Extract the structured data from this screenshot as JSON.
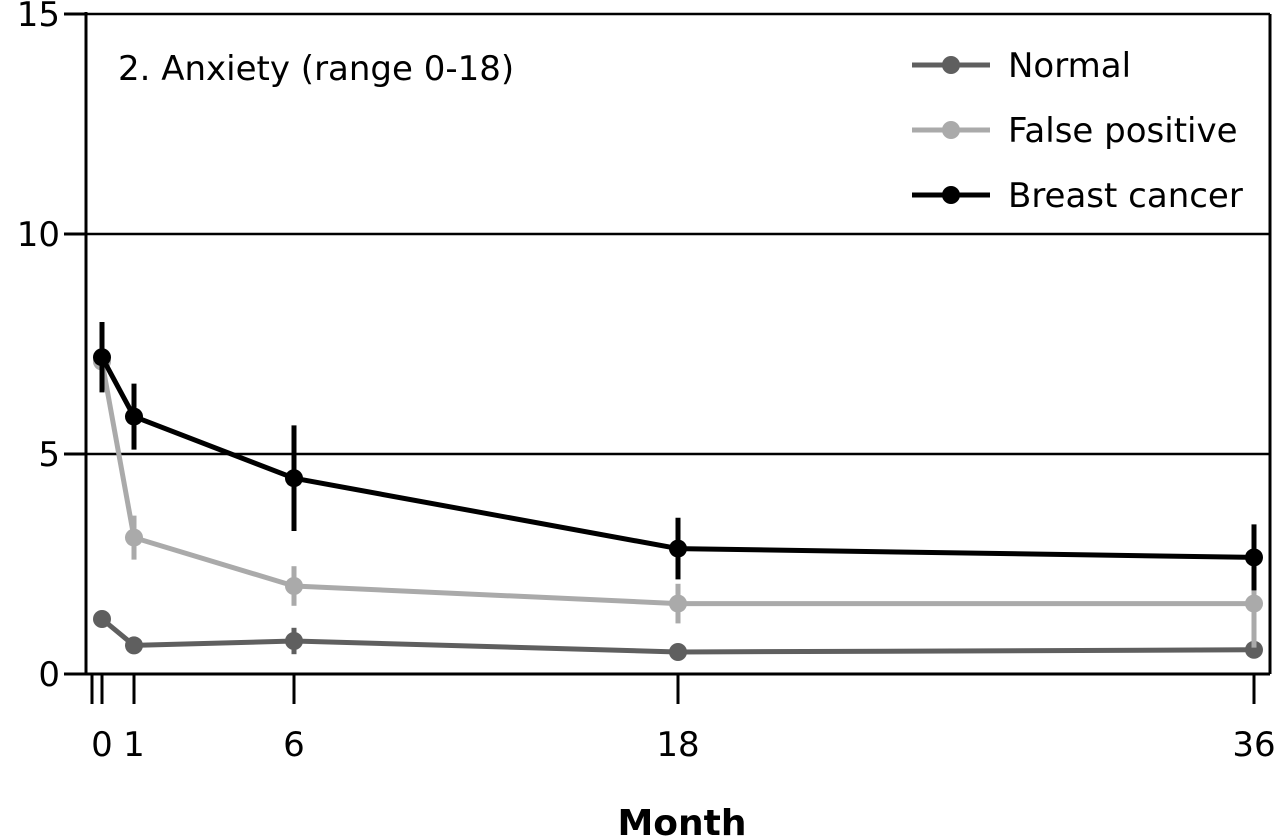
{
  "chart_data": {
    "type": "line",
    "title": "",
    "annotation": "2. Anxiety (range 0-18)",
    "xlabel": "Month",
    "ylabel": "",
    "xlim": [
      -0.5,
      36.5
    ],
    "ylim": [
      0,
      15
    ],
    "x_ticks": [
      0,
      1,
      6,
      18,
      36
    ],
    "y_ticks": [
      0,
      5,
      10,
      15
    ],
    "gridlines_y": true,
    "legend_position": "top-right",
    "series": [
      {
        "name": "Normal",
        "color": "#5f5f5f",
        "x": [
          0,
          1,
          6,
          18,
          36
        ],
        "y": [
          1.25,
          0.65,
          0.75,
          0.5,
          0.55
        ],
        "err": [
          0.1,
          0.1,
          0.3,
          0.1,
          0.15
        ]
      },
      {
        "name": "False positive",
        "color": "#aaaaaa",
        "x": [
          0,
          1,
          6,
          18,
          36
        ],
        "y": [
          7.1,
          3.1,
          2.0,
          1.6,
          1.6
        ],
        "err": [
          0.5,
          0.5,
          0.45,
          0.45,
          1.0
        ]
      },
      {
        "name": "Breast cancer",
        "color": "#000000",
        "x": [
          0,
          1,
          6,
          18,
          36
        ],
        "y": [
          7.2,
          5.85,
          4.45,
          2.85,
          2.65
        ],
        "err": [
          0.8,
          0.75,
          1.2,
          0.7,
          0.75
        ]
      }
    ]
  }
}
